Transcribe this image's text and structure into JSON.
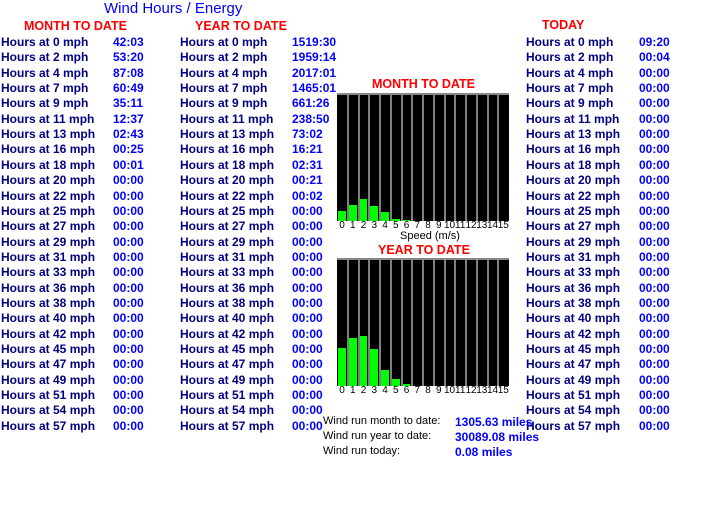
{
  "title": "Wind Hours / Energy",
  "month": {
    "header": "MONTH TO DATE",
    "rows": [
      [
        "Hours at 0 mph",
        "42:03"
      ],
      [
        "Hours at 2 mph",
        "53:20"
      ],
      [
        "Hours at 4 mph",
        "87:08"
      ],
      [
        "Hours at 7 mph",
        "60:49"
      ],
      [
        "Hours at 9 mph",
        "35:11"
      ],
      [
        "Hours at 11 mph",
        "12:37"
      ],
      [
        "Hours at 13 mph",
        "02:43"
      ],
      [
        "Hours at 16 mph",
        "00:25"
      ],
      [
        "Hours at 18 mph",
        "00:01"
      ],
      [
        "Hours at 20 mph",
        "00:00"
      ],
      [
        "Hours at 22 mph",
        "00:00"
      ],
      [
        "Hours at 25 mph",
        "00:00"
      ],
      [
        "Hours at 27 mph",
        "00:00"
      ],
      [
        "Hours at 29 mph",
        "00:00"
      ],
      [
        "Hours at 31 mph",
        "00:00"
      ],
      [
        "Hours at 33 mph",
        "00:00"
      ],
      [
        "Hours at 36 mph",
        "00:00"
      ],
      [
        "Hours at 38 mph",
        "00:00"
      ],
      [
        "Hours at 40 mph",
        "00:00"
      ],
      [
        "Hours at 42 mph",
        "00:00"
      ],
      [
        "Hours at 45 mph",
        "00:00"
      ],
      [
        "Hours at 47 mph",
        "00:00"
      ],
      [
        "Hours at 49 mph",
        "00:00"
      ],
      [
        "Hours at 51 mph",
        "00:00"
      ],
      [
        "Hours at 54 mph",
        "00:00"
      ],
      [
        "Hours at 57 mph",
        "00:00"
      ]
    ]
  },
  "year": {
    "header": "YEAR TO DATE",
    "rows": [
      [
        "Hours at 0 mph",
        "1519:30"
      ],
      [
        "Hours at 2 mph",
        "1959:14"
      ],
      [
        "Hours at 4 mph",
        "2017:01"
      ],
      [
        "Hours at 7 mph",
        "1465:01"
      ],
      [
        "Hours at 9 mph",
        "661:26"
      ],
      [
        "Hours at 11 mph",
        "238:50"
      ],
      [
        "Hours at 13 mph",
        "73:02"
      ],
      [
        "Hours at 16 mph",
        "16:21"
      ],
      [
        "Hours at 18 mph",
        "02:31"
      ],
      [
        "Hours at 20 mph",
        "00:21"
      ],
      [
        "Hours at 22 mph",
        "00:02"
      ],
      [
        "Hours at 25 mph",
        "00:00"
      ],
      [
        "Hours at 27 mph",
        "00:00"
      ],
      [
        "Hours at 29 mph",
        "00:00"
      ],
      [
        "Hours at 31 mph",
        "00:00"
      ],
      [
        "Hours at 33 mph",
        "00:00"
      ],
      [
        "Hours at 36 mph",
        "00:00"
      ],
      [
        "Hours at 38 mph",
        "00:00"
      ],
      [
        "Hours at 40 mph",
        "00:00"
      ],
      [
        "Hours at 42 mph",
        "00:00"
      ],
      [
        "Hours at 45 mph",
        "00:00"
      ],
      [
        "Hours at 47 mph",
        "00:00"
      ],
      [
        "Hours at 49 mph",
        "00:00"
      ],
      [
        "Hours at 51 mph",
        "00:00"
      ],
      [
        "Hours at 54 mph",
        "00:00"
      ],
      [
        "Hours at 57 mph",
        "00:00"
      ]
    ]
  },
  "today": {
    "header": "TODAY",
    "rows": [
      [
        "Hours at 0 mph",
        "09:20"
      ],
      [
        "Hours at 2 mph",
        "00:04"
      ],
      [
        "Hours at 4 mph",
        "00:00"
      ],
      [
        "Hours at 7 mph",
        "00:00"
      ],
      [
        "Hours at 9 mph",
        "00:00"
      ],
      [
        "Hours at 11 mph",
        "00:00"
      ],
      [
        "Hours at 13 mph",
        "00:00"
      ],
      [
        "Hours at 16 mph",
        "00:00"
      ],
      [
        "Hours at 18 mph",
        "00:00"
      ],
      [
        "Hours at 20 mph",
        "00:00"
      ],
      [
        "Hours at 22 mph",
        "00:00"
      ],
      [
        "Hours at 25 mph",
        "00:00"
      ],
      [
        "Hours at 27 mph",
        "00:00"
      ],
      [
        "Hours at 29 mph",
        "00:00"
      ],
      [
        "Hours at 31 mph",
        "00:00"
      ],
      [
        "Hours at 33 mph",
        "00:00"
      ],
      [
        "Hours at 36 mph",
        "00:00"
      ],
      [
        "Hours at 38 mph",
        "00:00"
      ],
      [
        "Hours at 40 mph",
        "00:00"
      ],
      [
        "Hours at 42 mph",
        "00:00"
      ],
      [
        "Hours at 45 mph",
        "00:00"
      ],
      [
        "Hours at 47 mph",
        "00:00"
      ],
      [
        "Hours at 49 mph",
        "00:00"
      ],
      [
        "Hours at 51 mph",
        "00:00"
      ],
      [
        "Hours at 54 mph",
        "00:00"
      ],
      [
        "Hours at 57 mph",
        "00:00"
      ]
    ]
  },
  "chart_data": [
    {
      "type": "bar",
      "title": "MONTH TO DATE",
      "xlabel": "Speed (m/s)",
      "categories": [
        "0",
        "1",
        "2",
        "3",
        "4",
        "5",
        "6",
        "7",
        "8",
        "9",
        "10",
        "11",
        "12",
        "13",
        "14",
        "15"
      ],
      "values_pct_of_max_height": [
        8,
        13,
        18,
        12,
        7,
        2,
        0.5,
        0,
        0,
        0,
        0,
        0,
        0,
        0,
        0,
        0
      ],
      "bar_color": "#00ff00",
      "background": "#000000"
    },
    {
      "type": "bar",
      "title": "YEAR TO DATE",
      "xlabel": "",
      "categories": [
        "0",
        "1",
        "2",
        "3",
        "4",
        "5",
        "6",
        "7",
        "8",
        "9",
        "10",
        "11",
        "12",
        "13",
        "14",
        "15"
      ],
      "values_pct_of_max_height": [
        31,
        39,
        40,
        30,
        13,
        5.5,
        1.5,
        0,
        0,
        0,
        0,
        0,
        0,
        0,
        0,
        0
      ],
      "bar_color": "#00ff00",
      "background": "#000000"
    }
  ],
  "windrun": [
    {
      "label": "Wind run month to date:",
      "value": "1305.63 miles"
    },
    {
      "label": "Wind run year to date:",
      "value": "30089.08 miles"
    },
    {
      "label": "Wind run today:",
      "value": "0.08 miles"
    }
  ]
}
